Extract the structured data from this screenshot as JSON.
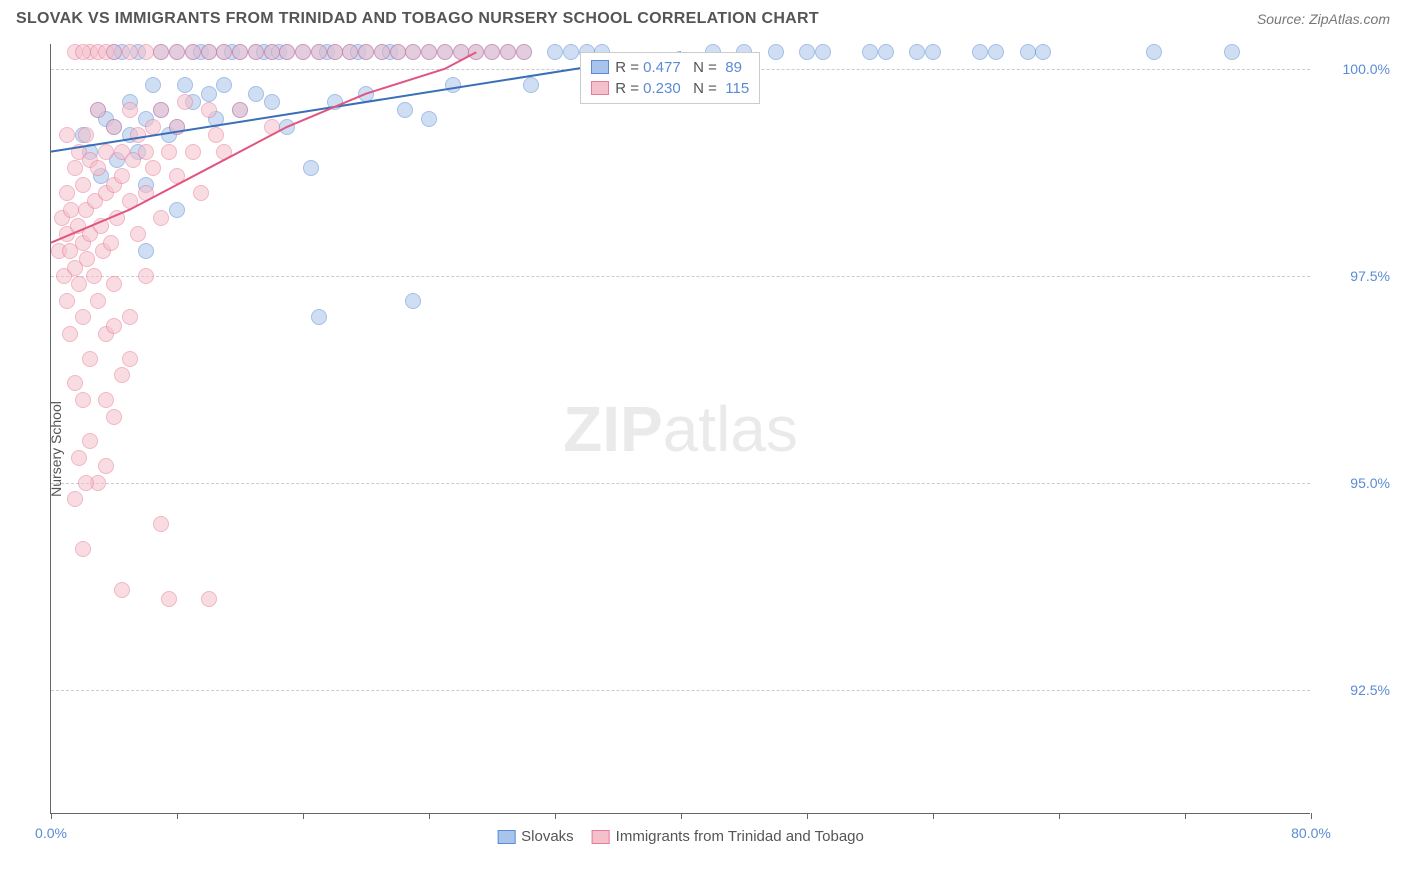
{
  "header": {
    "title": "SLOVAK VS IMMIGRANTS FROM TRINIDAD AND TOBAGO NURSERY SCHOOL CORRELATION CHART",
    "source_prefix": "Source: ",
    "source_name": "ZipAtlas.com"
  },
  "chart": {
    "type": "scatter",
    "y_axis_label": "Nursery School",
    "watermark_bold": "ZIP",
    "watermark_rest": "atlas",
    "xlim": [
      0,
      80
    ],
    "ylim": [
      91,
      100.3
    ],
    "x_ticks": [
      0,
      8,
      16,
      24,
      32,
      40,
      48,
      56,
      64,
      72,
      80
    ],
    "x_tick_labels_shown": {
      "0": "0.0%",
      "80": "80.0%"
    },
    "y_ticks": [
      92.5,
      95.0,
      97.5,
      100.0
    ],
    "y_tick_labels": [
      "92.5%",
      "95.0%",
      "97.5%",
      "100.0%"
    ],
    "grid_color": "#cccccc",
    "axis_color": "#666666",
    "tick_label_color": "#5b8bd4",
    "label_color": "#555555",
    "point_radius": 8,
    "point_opacity": 0.55,
    "series": [
      {
        "name": "Slovaks",
        "color_fill": "#a8c4ea",
        "color_stroke": "#5b8bd4",
        "R": "0.477",
        "N": "89",
        "trend": {
          "x1": 0,
          "y1": 99.0,
          "x2": 40,
          "y2": 100.2,
          "color": "#3a6fb7",
          "width": 2
        },
        "points": [
          [
            2,
            99.2
          ],
          [
            2.5,
            99.0
          ],
          [
            3,
            99.5
          ],
          [
            3.2,
            98.7
          ],
          [
            3.5,
            99.4
          ],
          [
            4,
            99.3
          ],
          [
            4,
            100.2
          ],
          [
            4.2,
            98.9
          ],
          [
            4.5,
            100.2
          ],
          [
            5,
            99.2
          ],
          [
            5,
            99.6
          ],
          [
            5.5,
            99.0
          ],
          [
            5.5,
            100.2
          ],
          [
            6,
            99.4
          ],
          [
            6,
            98.6
          ],
          [
            6.5,
            99.8
          ],
          [
            7,
            100.2
          ],
          [
            7,
            99.5
          ],
          [
            7.5,
            99.2
          ],
          [
            8,
            99.3
          ],
          [
            8,
            100.2
          ],
          [
            8.5,
            99.8
          ],
          [
            9,
            99.6
          ],
          [
            9,
            100.2
          ],
          [
            9.5,
            100.2
          ],
          [
            10,
            99.7
          ],
          [
            10,
            100.2
          ],
          [
            10.5,
            99.4
          ],
          [
            11,
            100.2
          ],
          [
            11,
            99.8
          ],
          [
            11.5,
            100.2
          ],
          [
            12,
            99.5
          ],
          [
            12,
            100.2
          ],
          [
            13,
            100.2
          ],
          [
            13,
            99.7
          ],
          [
            13.5,
            100.2
          ],
          [
            14,
            100.2
          ],
          [
            14,
            99.6
          ],
          [
            14.5,
            100.2
          ],
          [
            15,
            99.3
          ],
          [
            15,
            100.2
          ],
          [
            16,
            100.2
          ],
          [
            16.5,
            98.8
          ],
          [
            17,
            100.2
          ],
          [
            17.5,
            100.2
          ],
          [
            18,
            100.2
          ],
          [
            18,
            99.6
          ],
          [
            19,
            100.2
          ],
          [
            19.5,
            100.2
          ],
          [
            20,
            100.2
          ],
          [
            20,
            99.7
          ],
          [
            21,
            100.2
          ],
          [
            21.5,
            100.2
          ],
          [
            22,
            100.2
          ],
          [
            22.5,
            99.5
          ],
          [
            23,
            100.2
          ],
          [
            24,
            100.2
          ],
          [
            24,
            99.4
          ],
          [
            25,
            100.2
          ],
          [
            25.5,
            99.8
          ],
          [
            26,
            100.2
          ],
          [
            27,
            100.2
          ],
          [
            28,
            100.2
          ],
          [
            29,
            100.2
          ],
          [
            30,
            100.2
          ],
          [
            30.5,
            99.8
          ],
          [
            32,
            100.2
          ],
          [
            33,
            100.2
          ],
          [
            34,
            100.2
          ],
          [
            35,
            100.2
          ],
          [
            42,
            100.2
          ],
          [
            44,
            100.2
          ],
          [
            46,
            100.2
          ],
          [
            48,
            100.2
          ],
          [
            49,
            100.2
          ],
          [
            52,
            100.2
          ],
          [
            53,
            100.2
          ],
          [
            55,
            100.2
          ],
          [
            56,
            100.2
          ],
          [
            59,
            100.2
          ],
          [
            60,
            100.2
          ],
          [
            62,
            100.2
          ],
          [
            63,
            100.2
          ],
          [
            70,
            100.2
          ],
          [
            75,
            100.2
          ],
          [
            17,
            97.0
          ],
          [
            23,
            97.2
          ],
          [
            6,
            97.8
          ],
          [
            8,
            98.3
          ]
        ]
      },
      {
        "name": "Immigrants from Trinidad and Tobago",
        "color_fill": "#f4c0cc",
        "color_stroke": "#e87b9a",
        "R": "0.230",
        "N": "115",
        "trend_curve": {
          "color": "#e15582",
          "width": 2,
          "path": [
            [
              0,
              97.9
            ],
            [
              5,
              98.3
            ],
            [
              10,
              98.8
            ],
            [
              15,
              99.3
            ],
            [
              20,
              99.7
            ],
            [
              25,
              100.0
            ],
            [
              27,
              100.2
            ]
          ]
        },
        "points": [
          [
            0.5,
            97.8
          ],
          [
            0.7,
            98.2
          ],
          [
            0.8,
            97.5
          ],
          [
            1,
            98.0
          ],
          [
            1,
            97.2
          ],
          [
            1,
            98.5
          ],
          [
            1.2,
            97.8
          ],
          [
            1.2,
            96.8
          ],
          [
            1.3,
            98.3
          ],
          [
            1.5,
            97.6
          ],
          [
            1.5,
            98.8
          ],
          [
            1.5,
            96.2
          ],
          [
            1.7,
            98.1
          ],
          [
            1.8,
            97.4
          ],
          [
            1.8,
            99.0
          ],
          [
            2,
            97.9
          ],
          [
            2,
            98.6
          ],
          [
            2,
            97.0
          ],
          [
            2,
            96.0
          ],
          [
            2.2,
            98.3
          ],
          [
            2.2,
            99.2
          ],
          [
            2.3,
            97.7
          ],
          [
            2.5,
            98.0
          ],
          [
            2.5,
            98.9
          ],
          [
            2.5,
            96.5
          ],
          [
            2.5,
            100.2
          ],
          [
            2.7,
            97.5
          ],
          [
            2.8,
            98.4
          ],
          [
            3,
            98.8
          ],
          [
            3,
            97.2
          ],
          [
            3,
            99.5
          ],
          [
            3,
            100.2
          ],
          [
            3.2,
            98.1
          ],
          [
            3.3,
            97.8
          ],
          [
            3.5,
            99.0
          ],
          [
            3.5,
            98.5
          ],
          [
            3.5,
            96.8
          ],
          [
            3.5,
            95.2
          ],
          [
            3.5,
            100.2
          ],
          [
            3.8,
            97.9
          ],
          [
            4,
            98.6
          ],
          [
            4,
            99.3
          ],
          [
            4,
            97.4
          ],
          [
            4,
            100.2
          ],
          [
            4.2,
            98.2
          ],
          [
            4.5,
            99.0
          ],
          [
            4.5,
            98.7
          ],
          [
            4.5,
            93.7
          ],
          [
            5,
            98.4
          ],
          [
            5,
            99.5
          ],
          [
            5,
            97.0
          ],
          [
            5,
            100.2
          ],
          [
            5.2,
            98.9
          ],
          [
            5.5,
            99.2
          ],
          [
            5.5,
            98.0
          ],
          [
            6,
            99.0
          ],
          [
            6,
            98.5
          ],
          [
            6,
            100.2
          ],
          [
            6,
            97.5
          ],
          [
            6.5,
            99.3
          ],
          [
            6.5,
            98.8
          ],
          [
            7,
            99.5
          ],
          [
            7,
            98.2
          ],
          [
            7,
            100.2
          ],
          [
            7,
            94.5
          ],
          [
            7.5,
            99.0
          ],
          [
            7.5,
            93.6
          ],
          [
            8,
            99.3
          ],
          [
            8,
            98.7
          ],
          [
            8,
            100.2
          ],
          [
            8.5,
            99.6
          ],
          [
            9,
            99.0
          ],
          [
            9,
            100.2
          ],
          [
            9.5,
            98.5
          ],
          [
            10,
            99.5
          ],
          [
            10,
            100.2
          ],
          [
            10,
            93.6
          ],
          [
            10.5,
            99.2
          ],
          [
            11,
            100.2
          ],
          [
            11,
            99.0
          ],
          [
            12,
            100.2
          ],
          [
            12,
            99.5
          ],
          [
            13,
            100.2
          ],
          [
            14,
            100.2
          ],
          [
            14,
            99.3
          ],
          [
            15,
            100.2
          ],
          [
            16,
            100.2
          ],
          [
            17,
            100.2
          ],
          [
            18,
            100.2
          ],
          [
            19,
            100.2
          ],
          [
            20,
            100.2
          ],
          [
            21,
            100.2
          ],
          [
            22,
            100.2
          ],
          [
            23,
            100.2
          ],
          [
            24,
            100.2
          ],
          [
            25,
            100.2
          ],
          [
            26,
            100.2
          ],
          [
            27,
            100.2
          ],
          [
            28,
            100.2
          ],
          [
            2,
            94.2
          ],
          [
            1.5,
            94.8
          ],
          [
            2.5,
            95.5
          ],
          [
            3,
            95.0
          ],
          [
            3.5,
            96.0
          ],
          [
            4,
            95.8
          ],
          [
            4.5,
            96.3
          ],
          [
            5,
            96.5
          ],
          [
            1.8,
            95.3
          ],
          [
            2.2,
            95.0
          ],
          [
            1,
            99.2
          ],
          [
            1.5,
            100.2
          ],
          [
            2,
            100.2
          ],
          [
            4,
            96.9
          ],
          [
            29,
            100.2
          ],
          [
            30,
            100.2
          ]
        ]
      }
    ],
    "legend_box": {
      "top_pct": 1,
      "left_pct": 42
    },
    "bottom_legend": [
      "Slovaks",
      "Immigrants from Trinidad and Tobago"
    ]
  }
}
